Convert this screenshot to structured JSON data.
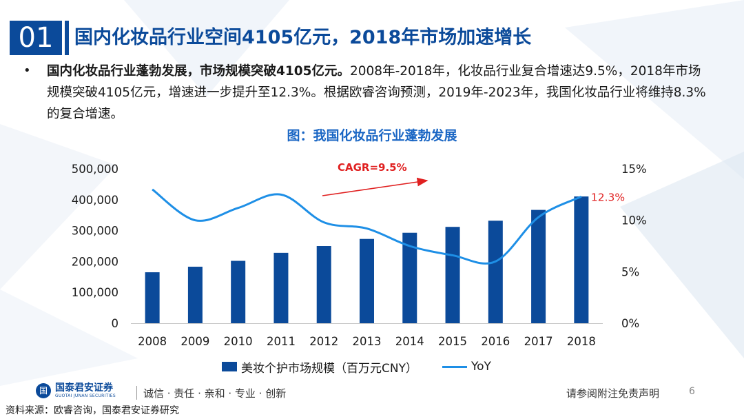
{
  "header": {
    "section_number": "01",
    "title": "国内化妆品行业空间4105亿元，2018年市场加速增长"
  },
  "bullet": {
    "marker": "•",
    "bold_text": "国内化妆品行业蓬勃发展，市场规模突破4105亿元。",
    "body_text": "2008年-2018年，化妆品行业复合增速达9.5%，2018年市场规模突破4105亿元，增速进一步提升至12.3%。根据欧睿咨询预测，2019年-2023年，我国化妆品行业将维持8.3%的复合增速。"
  },
  "chart_data": {
    "type": "bar",
    "title": "图：我国化妆品行业蓬勃发展",
    "categories": [
      "2008",
      "2009",
      "2010",
      "2011",
      "2012",
      "2013",
      "2014",
      "2015",
      "2016",
      "2017",
      "2018"
    ],
    "series": [
      {
        "name": "美妆个护市场规模（百万元CNY）",
        "type": "bar",
        "axis": "left",
        "values": [
          165000,
          183000,
          202000,
          228000,
          250000,
          273000,
          293000,
          312000,
          332000,
          367000,
          410500
        ]
      },
      {
        "name": "YoY",
        "type": "line",
        "axis": "right",
        "values": [
          13.0,
          10.0,
          11.2,
          12.5,
          9.8,
          9.2,
          7.5,
          6.6,
          6.0,
          10.3,
          12.3
        ]
      }
    ],
    "y_left": {
      "min": 0,
      "max": 500000,
      "ticks": [
        "0",
        "100,000",
        "200,000",
        "300,000",
        "400,000",
        "500,000"
      ]
    },
    "y_right": {
      "min": 0,
      "max": 15,
      "ticks": [
        "0%",
        "5%",
        "10%",
        "15%"
      ]
    },
    "annotations": {
      "cagr": "CAGR=9.5%",
      "last_yoy": "12.3%"
    },
    "colors": {
      "bar": "#0b4a9a",
      "line": "#1e8fe6",
      "annotation": "#e02020"
    }
  },
  "footer": {
    "logo_mark": "国",
    "logo_cn": "国泰君安证券",
    "logo_en": "GUOTAI JUNAN SECURITIES",
    "slogan": "诚信 · 责任 · 亲和 · 专业 · 创新",
    "disclaimer": "请参阅附注免责声明",
    "page_number": "6",
    "source": "资料来源：欧睿咨询，国泰君安证券研究"
  }
}
